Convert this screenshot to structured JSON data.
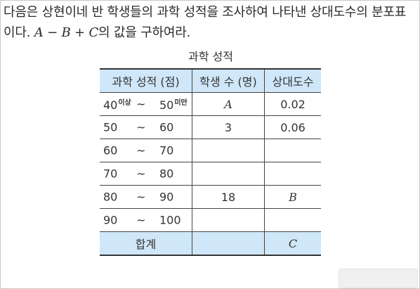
{
  "question": {
    "text_before": "다음은 상현이네 반 학생들의 과학 성적을 조사하여 나타낸 상대도수의 분포표이다. ",
    "expression": "A − B + C",
    "text_after": "의 값을 구하여라."
  },
  "table": {
    "title": "과학 성적",
    "headers": [
      "과학 성적 (점)",
      "학생 수 (명)",
      "상대도수"
    ],
    "rows": [
      {
        "low": "40",
        "low_suffix": "이상",
        "tilde": "~",
        "high": "50",
        "high_suffix": "미만",
        "students": "A",
        "relative": "0.02"
      },
      {
        "low": "50",
        "low_suffix": "",
        "tilde": "~",
        "high": "60",
        "high_suffix": "",
        "students": "3",
        "relative": "0.06"
      },
      {
        "low": "60",
        "low_suffix": "",
        "tilde": "~",
        "high": "70",
        "high_suffix": "",
        "students": "",
        "relative": ""
      },
      {
        "low": "70",
        "low_suffix": "",
        "tilde": "~",
        "high": "80",
        "high_suffix": "",
        "students": "",
        "relative": ""
      },
      {
        "low": "80",
        "low_suffix": "",
        "tilde": "~",
        "high": "90",
        "high_suffix": "",
        "students": "18",
        "relative": "B"
      },
      {
        "low": "90",
        "low_suffix": "",
        "tilde": "~",
        "high": "100",
        "high_suffix": "",
        "students": "",
        "relative": ""
      }
    ],
    "total": {
      "label": "합계",
      "students": "",
      "relative": "C"
    }
  },
  "colors": {
    "header_bg": "#cfe7f8",
    "border": "#444444"
  }
}
